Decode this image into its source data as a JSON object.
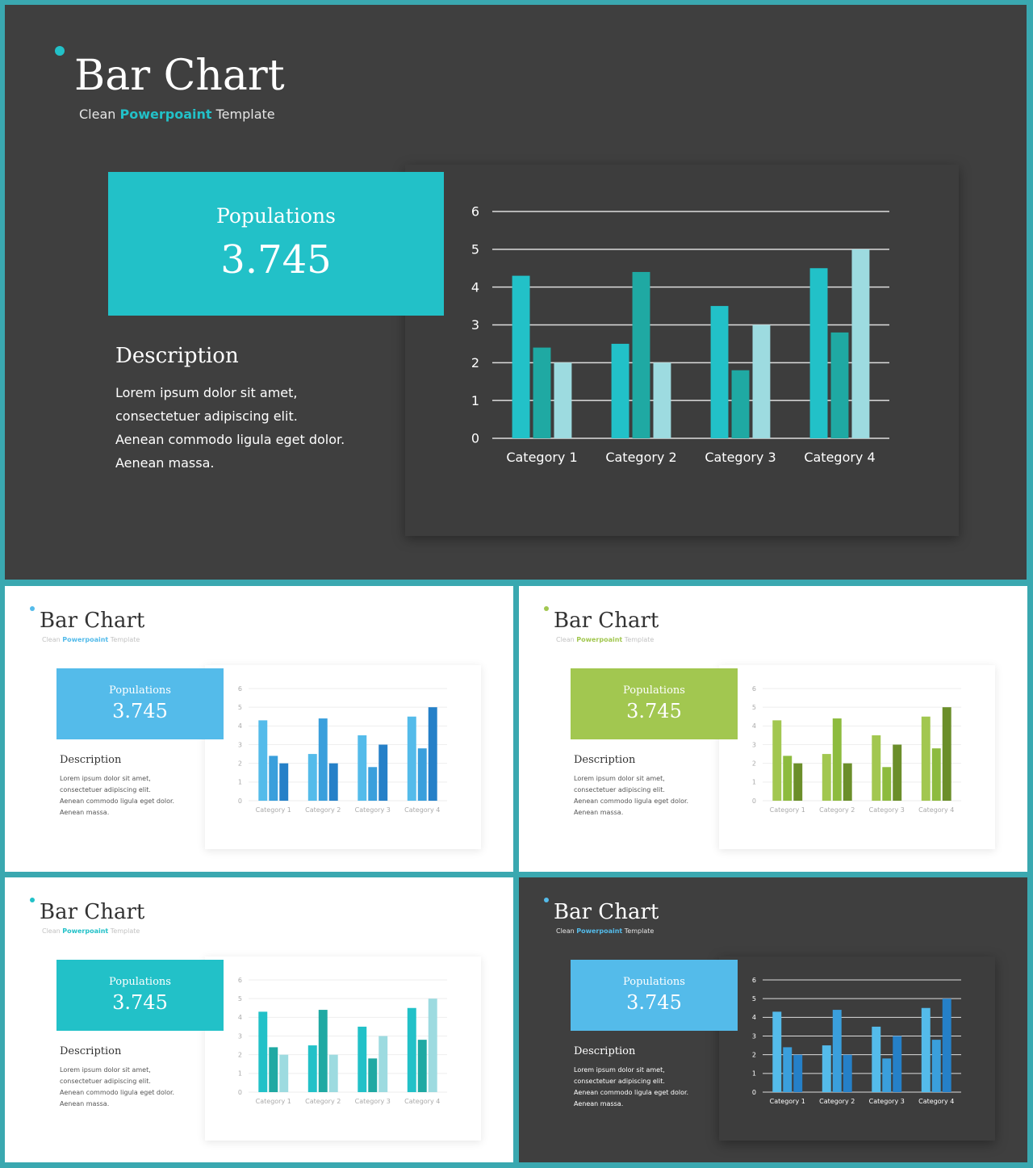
{
  "slides": [
    {
      "title": "Bar Chart",
      "subtitle_pre": "Clean ",
      "subtitle_hl": "Powerpoaint",
      "subtitle_post": " Template",
      "stat_label": "Populations",
      "stat_value": "3.745",
      "desc_title": "Description",
      "desc_body": "Lorem ipsum dolor sit amet, consectetuer adipiscing elit. Aenean commodo ligula eget dolor. Aenean massa.",
      "theme": {
        "bg": "#3f3f3f",
        "accent": "#22c1c8",
        "series": [
          "#22c1c8",
          "#1fa9a3",
          "#9ddbe0"
        ],
        "grid": "#dddddd",
        "axis_text": "#ffffff"
      }
    },
    {
      "title": "Bar Chart",
      "subtitle_pre": "Clean ",
      "subtitle_hl": "Powerpoaint",
      "subtitle_post": " Template",
      "stat_label": "Populations",
      "stat_value": "3.745",
      "desc_title": "Description",
      "desc_body": "Lorem ipsum dolor sit amet, consectetuer adipiscing elit. Aenean commodo ligula eget dolor. Aenean massa.",
      "theme": {
        "bg": "#ffffff",
        "accent": "#54bbea",
        "series": [
          "#54bbea",
          "#3a9fdc",
          "#2580c8"
        ],
        "grid": "#eeeeee",
        "axis_text": "#aaaaaa"
      }
    },
    {
      "title": "Bar Chart",
      "subtitle_pre": "Clean ",
      "subtitle_hl": "Powerpoaint",
      "subtitle_post": " Template",
      "stat_label": "Populations",
      "stat_value": "3.745",
      "desc_title": "Description",
      "desc_body": "Lorem ipsum dolor sit amet, consectetuer adipiscing elit. Aenean commodo ligula eget dolor. Aenean massa.",
      "theme": {
        "bg": "#ffffff",
        "accent": "#a2c750",
        "series": [
          "#a2c750",
          "#8dbb3e",
          "#6b8e2a"
        ],
        "grid": "#eeeeee",
        "axis_text": "#aaaaaa"
      }
    },
    {
      "title": "Bar Chart",
      "subtitle_pre": "Clean ",
      "subtitle_hl": "Powerpoaint",
      "subtitle_post": " Template",
      "stat_label": "Populations",
      "stat_value": "3.745",
      "desc_title": "Description",
      "desc_body": "Lorem ipsum dolor sit amet, consectetuer adipiscing elit. Aenean commodo ligula eget dolor. Aenean massa.",
      "theme": {
        "bg": "#ffffff",
        "accent": "#22c1c8",
        "series": [
          "#22c1c8",
          "#1fa9a3",
          "#9ddbe0"
        ],
        "grid": "#eeeeee",
        "axis_text": "#aaaaaa"
      }
    },
    {
      "title": "Bar Chart",
      "subtitle_pre": "Clean ",
      "subtitle_hl": "Powerpoaint",
      "subtitle_post": " Template",
      "stat_label": "Populations",
      "stat_value": "3.745",
      "desc_title": "Description",
      "desc_body": "Lorem ipsum dolor sit amet, consectetuer adipiscing elit. Aenean commodo ligula eget dolor. Aenean massa.",
      "theme": {
        "bg": "#3f3f3f",
        "accent": "#54bbea",
        "series": [
          "#54bbea",
          "#3a9fdc",
          "#2580c8"
        ],
        "grid": "#dddddd",
        "axis_text": "#ffffff"
      }
    }
  ],
  "chart_data": {
    "type": "bar",
    "categories": [
      "Category 1",
      "Category 2",
      "Category 3",
      "Category 4"
    ],
    "series": [
      {
        "values": [
          4.3,
          2.5,
          3.5,
          4.5
        ]
      },
      {
        "values": [
          2.4,
          4.4,
          1.8,
          2.8
        ]
      },
      {
        "values": [
          2.0,
          2.0,
          3.0,
          5.0
        ]
      }
    ],
    "ylim": [
      0,
      6
    ],
    "yticks": [
      "0",
      "1",
      "2",
      "3",
      "4",
      "5",
      "6"
    ],
    "grid": true,
    "legend": "none"
  }
}
